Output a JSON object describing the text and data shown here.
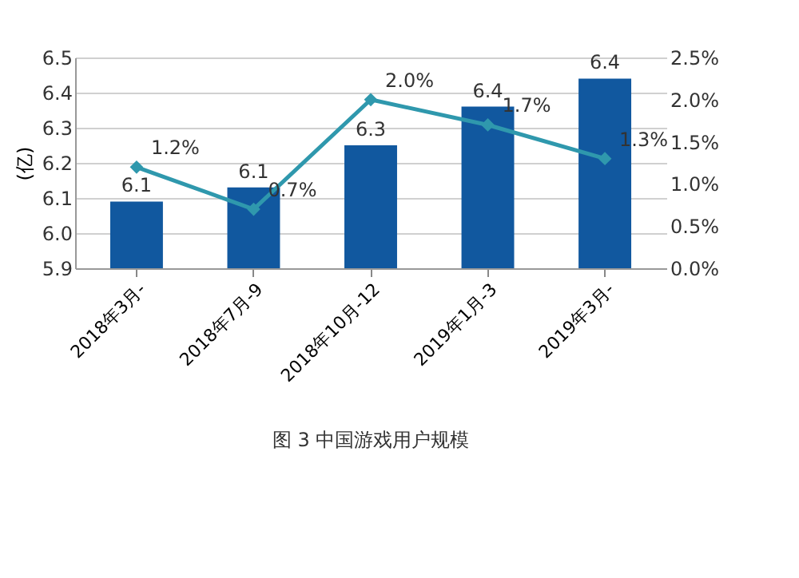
{
  "chart_data": {
    "type": "bar",
    "ylabel": "(亿)",
    "categories": [
      "2018年3月-",
      "2018年7月-9",
      "2018年10月-12",
      "2019年1月-3",
      "2019年3月-"
    ],
    "series": [
      {
        "color": "#11589f",
        "values": [
          6.09,
          6.13,
          6.25,
          6.36,
          6.44
        ],
        "value_labels": [
          "6.1",
          "6.1",
          "6.3",
          "6.4",
          "6.4"
        ]
      },
      {
        "type": "line",
        "axis": "y2",
        "color": "#2f98ad",
        "marker": "diamond",
        "line_style": "solid",
        "values": [
          1.2,
          0.7,
          2.0,
          1.7,
          1.3
        ],
        "value_labels": [
          "1.2%",
          "0.7%",
          "2.0%",
          "1.7%",
          "1.3%"
        ]
      }
    ],
    "ylim": [
      5.9,
      6.5
    ],
    "yticks": [
      5.9,
      {
        "value": 6,
        "label": "6.0"
      },
      6.1,
      6.2,
      6.3,
      6.4,
      6.5
    ],
    "y2lim": [
      0,
      2.5
    ],
    "y2ticks": [
      {
        "value": 0,
        "label": "0.0%"
      },
      {
        "value": 0.5,
        "label": "0.5%"
      },
      {
        "value": 1,
        "label": "1.0%"
      },
      {
        "value": 1.5,
        "label": "1.5%"
      },
      {
        "value": 2,
        "label": "2.0%"
      },
      {
        "value": 2.5,
        "label": "2.5%"
      }
    ],
    "grid": "y",
    "annotations": [
      "图 3 中国游戏用户规模"
    ]
  }
}
